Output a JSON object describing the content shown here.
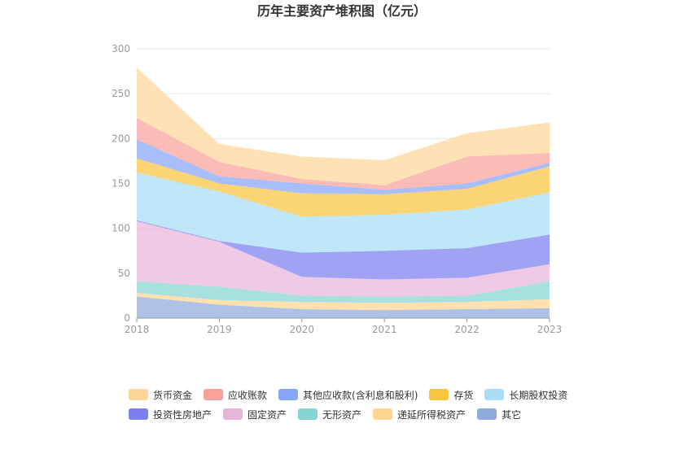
{
  "chart_data": {
    "type": "area",
    "stacked": true,
    "title": "历年主要资产堆积图（亿元）",
    "categories": [
      "2018",
      "2019",
      "2020",
      "2021",
      "2022",
      "2023"
    ],
    "ylim": [
      0,
      300
    ],
    "yticks": [
      0,
      50,
      100,
      150,
      200,
      250,
      300
    ],
    "grid": true,
    "legend_position": "bottom",
    "series": [
      {
        "name": "其它",
        "color": "#8faadc",
        "values": [
          24,
          15,
          10,
          9,
          10,
          11
        ]
      },
      {
        "name": "递延所得税资产",
        "color": "#ffd591",
        "values": [
          4,
          5,
          8,
          8,
          8,
          10
        ]
      },
      {
        "name": "无形资产",
        "color": "#87d4d4",
        "values": [
          13,
          15,
          7,
          7,
          7,
          20
        ]
      },
      {
        "name": "固定资产",
        "color": "#e8b5da",
        "values": [
          67,
          50,
          21,
          19,
          20,
          19
        ]
      },
      {
        "name": "投资性房地产",
        "color": "#7b7ff0",
        "values": [
          1,
          1,
          27,
          32,
          33,
          33
        ]
      },
      {
        "name": "长期股权投资",
        "color": "#a8def7",
        "values": [
          53,
          55,
          40,
          40,
          43,
          47
        ]
      },
      {
        "name": "存货",
        "color": "#f9c440",
        "values": [
          16,
          9,
          26,
          23,
          23,
          29
        ]
      },
      {
        "name": "其他应收款(含利息和股利)",
        "color": "#85a5f8",
        "values": [
          21,
          8,
          11,
          5,
          6,
          4
        ]
      },
      {
        "name": "应收账款",
        "color": "#f9a19a",
        "values": [
          24,
          16,
          5,
          5,
          30,
          11
        ]
      },
      {
        "name": "货币资金",
        "color": "#ffd69a",
        "values": [
          56,
          20,
          25,
          28,
          26,
          34
        ]
      }
    ]
  },
  "legend_order": [
    "货币资金",
    "应收账款",
    "其他应收款(含利息和股利)",
    "存货",
    "长期股权投资",
    "投资性房地产",
    "固定资产",
    "无形资产",
    "递延所得税资产",
    "其它"
  ]
}
